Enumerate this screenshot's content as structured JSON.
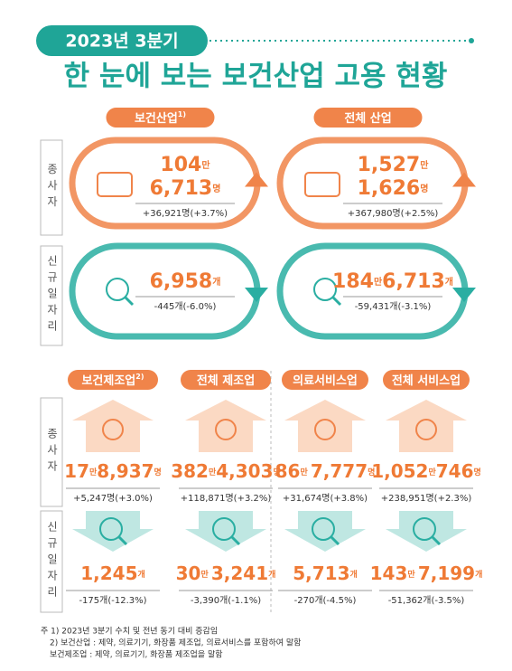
{
  "header": {
    "badge": "2023년 3분기",
    "title": "한 눈에 보는 보건산업 고용 현황"
  },
  "top": {
    "columns": [
      {
        "label": "보건산업",
        "note": "1)"
      },
      {
        "label": "전체 산업"
      }
    ],
    "rows": [
      {
        "label": "종사자",
        "cells": [
          {
            "main": [
              [
                "104",
                "만"
              ],
              [
                "6,713",
                "명"
              ]
            ],
            "change": "+36,921명(+3.7%)"
          },
          {
            "main": [
              [
                "1,527",
                "만"
              ],
              [
                "1,626",
                "명"
              ]
            ],
            "change": "+367,980명(+2.5%)"
          }
        ]
      },
      {
        "label": "신규일자리",
        "cells": [
          {
            "main": [
              [
                "6,958",
                "개"
              ]
            ],
            "change": "-445개(-6.0%)"
          },
          {
            "main": [
              [
                "184",
                "만",
                "6,713",
                "개"
              ]
            ],
            "change": "-59,431개(-3.1%)"
          }
        ]
      }
    ]
  },
  "bottom": {
    "columns": [
      {
        "label": "보건제조업",
        "note": "2)"
      },
      {
        "label": "전체 제조업"
      },
      {
        "label": "의료서비스업"
      },
      {
        "label": "전체 서비스업"
      }
    ],
    "rows": [
      {
        "label": "종사자",
        "cells": [
          {
            "main": [
              "17",
              "만",
              "8,937",
              "명"
            ],
            "change": "+5,247명(+3.0%)"
          },
          {
            "main": [
              "382",
              "만",
              "4,303",
              "명"
            ],
            "change": "+118,871명(+3.2%)"
          },
          {
            "main": [
              "86",
              "만 ",
              "7,777",
              "명"
            ],
            "change": "+31,674명(+3.8%)"
          },
          {
            "main": [
              "1,052",
              "만",
              "746",
              "명"
            ],
            "change": "+238,951명(+2.3%)"
          }
        ]
      },
      {
        "label": "신규일자리",
        "cells": [
          {
            "main": [
              "1,245",
              "개"
            ],
            "change": "-175개(-12.3%)"
          },
          {
            "main": [
              "30",
              "만 ",
              "3,241",
              "개"
            ],
            "change": "-3,390개(-1.1%)"
          },
          {
            "main": [
              "5,713",
              "개"
            ],
            "change": "-270개(-4.5%)"
          },
          {
            "main": [
              "143",
              "만 ",
              "7,199",
              "개"
            ],
            "change": "-51,362개(-3.5%)"
          }
        ]
      }
    ]
  },
  "notes": [
    "주 1) 2023년 3분기 수치 및 전년 동기 대비 증감임",
    "2) 보건산업 : 제약, 의료기기, 화장품 제조업, 의료서비스를 포함하여 말함",
    "보건제조업 : 제약, 의료기기, 화장품 제조업을 말함"
  ]
}
